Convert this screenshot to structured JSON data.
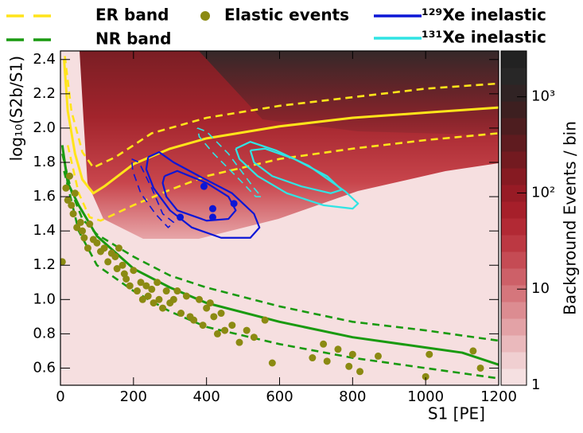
{
  "chart_data": {
    "type": "scatter",
    "x_label": "S1 [PE]",
    "y_label": "log₁₀(S2b/S1)",
    "xlim": [
      0,
      1200
    ],
    "xticks": [
      0,
      200,
      400,
      600,
      800,
      1000,
      1200
    ],
    "ylim": [
      0.5,
      2.45
    ],
    "yticks": [
      0.6,
      0.8,
      {
        "value": 1,
        "label": "1.0"
      },
      1.2,
      1.4,
      1.6,
      1.8,
      {
        "value": 2,
        "label": "2.0"
      },
      2.2,
      2.4
    ],
    "colorbar": {
      "label": "Background Events / bin",
      "log": true,
      "lim": [
        1,
        3000
      ],
      "ticks": [
        1,
        10,
        {
          "value": 100,
          "label": "10²"
        },
        {
          "value": 1000,
          "label": "10³"
        }
      ]
    },
    "legend": "top",
    "series": [
      {
        "name": "ER band",
        "color": "#ffe41a",
        "lines": [
          {
            "style": "solid",
            "x": [
              10,
              20,
              40,
              60,
              90,
              120,
              200,
              300,
              400,
              600,
              800,
              1000,
              1200
            ],
            "y": [
              2.4,
              2.1,
              1.85,
              1.7,
              1.62,
              1.66,
              1.79,
              1.88,
              1.94,
              2.01,
              2.06,
              2.09,
              2.12
            ]
          },
          {
            "style": "dashed",
            "x": [
              12,
              30,
              60,
              90,
              150,
              250,
              400,
              600,
              800,
              1000,
              1200
            ],
            "y": [
              2.42,
              2.1,
              1.86,
              1.77,
              1.83,
              1.97,
              2.06,
              2.13,
              2.18,
              2.23,
              2.26
            ]
          },
          {
            "style": "dashed",
            "x": [
              20,
              50,
              80,
              110,
              200,
              300,
              400,
              600,
              800,
              1000,
              1200
            ],
            "y": [
              1.9,
              1.62,
              1.48,
              1.46,
              1.55,
              1.64,
              1.72,
              1.82,
              1.88,
              1.93,
              1.97
            ]
          }
        ]
      },
      {
        "name": "NR band",
        "color": "#1a9a10",
        "lines": [
          {
            "style": "solid",
            "x": [
              5,
              20,
              50,
              100,
              200,
              300,
              400,
              600,
              800,
              1000,
              1100,
              1200
            ],
            "y": [
              1.9,
              1.68,
              1.55,
              1.37,
              1.18,
              1.07,
              0.98,
              0.87,
              0.78,
              0.72,
              0.69,
              0.62
            ]
          },
          {
            "style": "dashed",
            "x": [
              5,
              30,
              60,
              100,
              200,
              300,
              400,
              600,
              800,
              1000,
              1100,
              1200
            ],
            "y": [
              1.85,
              1.63,
              1.47,
              1.38,
              1.25,
              1.14,
              1.07,
              0.96,
              0.87,
              0.82,
              0.79,
              0.76
            ]
          },
          {
            "style": "dashed",
            "x": [
              10,
              50,
              100,
              200,
              300,
              400,
              600,
              800,
              1000,
              1200
            ],
            "y": [
              1.75,
              1.4,
              1.2,
              1.05,
              0.93,
              0.84,
              0.74,
              0.66,
              0.6,
              0.54
            ]
          }
        ]
      },
      {
        "name": "Elastic events",
        "color": "#8b8a12",
        "x": [
          5,
          15,
          20,
          25,
          30,
          35,
          40,
          45,
          55,
          60,
          65,
          75,
          80,
          90,
          100,
          110,
          120,
          130,
          140,
          150,
          155,
          160,
          170,
          175,
          180,
          190,
          200,
          210,
          220,
          225,
          235,
          240,
          250,
          255,
          265,
          270,
          280,
          290,
          300,
          310,
          320,
          330,
          345,
          355,
          365,
          380,
          390,
          400,
          410,
          420,
          430,
          440,
          450,
          470,
          490,
          510,
          530,
          560,
          580,
          690,
          720,
          730,
          760,
          790,
          800,
          820,
          870,
          1000,
          1010,
          1130,
          1150
        ],
        "y": [
          1.22,
          1.65,
          1.58,
          1.72,
          1.55,
          1.5,
          1.62,
          1.42,
          1.45,
          1.4,
          1.36,
          1.3,
          1.44,
          1.35,
          1.33,
          1.28,
          1.3,
          1.22,
          1.27,
          1.25,
          1.18,
          1.3,
          1.2,
          1.15,
          1.12,
          1.08,
          1.17,
          1.05,
          1.1,
          1.0,
          1.08,
          1.02,
          1.06,
          0.98,
          1.1,
          1.0,
          0.95,
          1.05,
          0.98,
          1.0,
          1.05,
          0.92,
          1.02,
          0.9,
          0.88,
          1.0,
          0.85,
          0.95,
          0.98,
          0.9,
          0.8,
          0.92,
          0.82,
          0.85,
          0.75,
          0.82,
          0.78,
          0.88,
          0.63,
          0.66,
          0.74,
          0.64,
          0.71,
          0.61,
          0.68,
          0.58,
          0.67,
          0.55,
          0.68,
          0.7,
          0.6
        ]
      },
      {
        "name": "¹²⁹Xe inelastic",
        "color": "#0c16d6",
        "lines": [
          {
            "style": "solid",
            "x": [
              240,
              270,
              310,
              380,
              470,
              530,
              545,
              520,
              440,
              360,
              300,
              255,
              235,
              240
            ],
            "y": [
              1.83,
              1.86,
              1.8,
              1.72,
              1.62,
              1.5,
              1.42,
              1.36,
              1.36,
              1.42,
              1.52,
              1.65,
              1.76,
              1.83
            ]
          },
          {
            "style": "solid",
            "x": [
              285,
              320,
              400,
              460,
              480,
              460,
              400,
              320,
              290,
              280,
              285
            ],
            "y": [
              1.72,
              1.75,
              1.68,
              1.6,
              1.52,
              1.47,
              1.46,
              1.52,
              1.6,
              1.68,
              1.72
            ]
          },
          {
            "style": "dashed",
            "x": [
              195,
              215,
              250,
              280,
              310,
              295,
              260,
              220,
              198,
              195
            ],
            "y": [
              1.82,
              1.8,
              1.65,
              1.5,
              1.45,
              1.42,
              1.5,
              1.62,
              1.75,
              1.82
            ]
          }
        ],
        "points": {
          "x": [
            328,
            393,
            417,
            417,
            475
          ],
          "y": [
            1.48,
            1.66,
            1.53,
            1.48,
            1.56
          ]
        }
      },
      {
        "name": "¹³¹Xe inelastic",
        "color": "#30e4e4",
        "lines": [
          {
            "style": "solid",
            "x": [
              480,
              520,
              590,
              680,
              780,
              815,
              800,
              720,
              620,
              540,
              490,
              480
            ],
            "y": [
              1.88,
              1.92,
              1.87,
              1.78,
              1.63,
              1.56,
              1.53,
              1.55,
              1.62,
              1.72,
              1.82,
              1.88
            ]
          },
          {
            "style": "solid",
            "x": [
              520,
              560,
              640,
              730,
              770,
              740,
              660,
              580,
              530,
              520
            ],
            "y": [
              1.87,
              1.88,
              1.82,
              1.72,
              1.64,
              1.62,
              1.66,
              1.72,
              1.8,
              1.87
            ]
          },
          {
            "style": "dashed",
            "x": [
              375,
              400,
              460,
              530,
              550,
              535,
              490,
              420,
              380,
              375
            ],
            "y": [
              2.0,
              1.98,
              1.85,
              1.65,
              1.6,
              1.6,
              1.7,
              1.85,
              1.95,
              2.0
            ]
          }
        ]
      }
    ]
  }
}
